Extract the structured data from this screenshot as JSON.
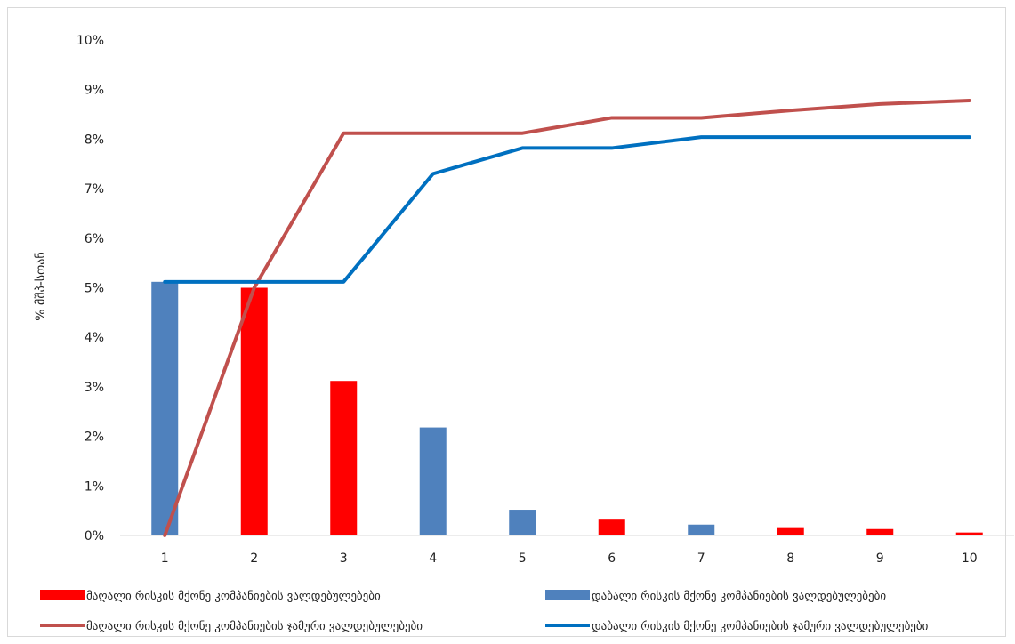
{
  "chart_data": {
    "type": "bar",
    "ylabel": "% მშპ-სთან",
    "xlabel": "",
    "categories": [
      "1",
      "2",
      "3",
      "4",
      "5",
      "6",
      "7",
      "8",
      "9",
      "10"
    ],
    "ylim": [
      0,
      10
    ],
    "yticks": [
      "0%",
      "1%",
      "2%",
      "3%",
      "4%",
      "5%",
      "6%",
      "7%",
      "8%",
      "9%",
      "10%"
    ],
    "grid": false,
    "legend_position": "bottom",
    "series": [
      {
        "name": "მაღალი რისკის მქონე კომპანიების ვალდებულებები",
        "kind": "bar",
        "color": "#ff0000",
        "values": [
          0,
          5.0,
          3.12,
          0,
          0,
          0.32,
          0,
          0.15,
          0.13,
          0.06
        ]
      },
      {
        "name": "დაბალი რისკის მქონე კომპანიების ვალდებულებები",
        "kind": "bar",
        "color": "#4f81bd",
        "values": [
          5.12,
          0,
          0,
          2.18,
          0.52,
          0,
          0.22,
          0,
          0,
          0
        ]
      },
      {
        "name": "მაღალი რისკის მქონე კომპანიების ჯამური ვალდებულებები",
        "kind": "line",
        "color": "#c0504d",
        "values": [
          0,
          5.0,
          8.12,
          8.12,
          8.12,
          8.43,
          8.43,
          8.58,
          8.71,
          8.78
        ]
      },
      {
        "name": "დაბალი რისკის მქონე კომპანიების ჯამური ვალდებულებები",
        "kind": "line",
        "color": "#0070c0",
        "values": [
          5.12,
          5.12,
          5.12,
          7.3,
          7.82,
          7.82,
          8.04,
          8.04,
          8.04,
          8.04
        ]
      }
    ]
  }
}
